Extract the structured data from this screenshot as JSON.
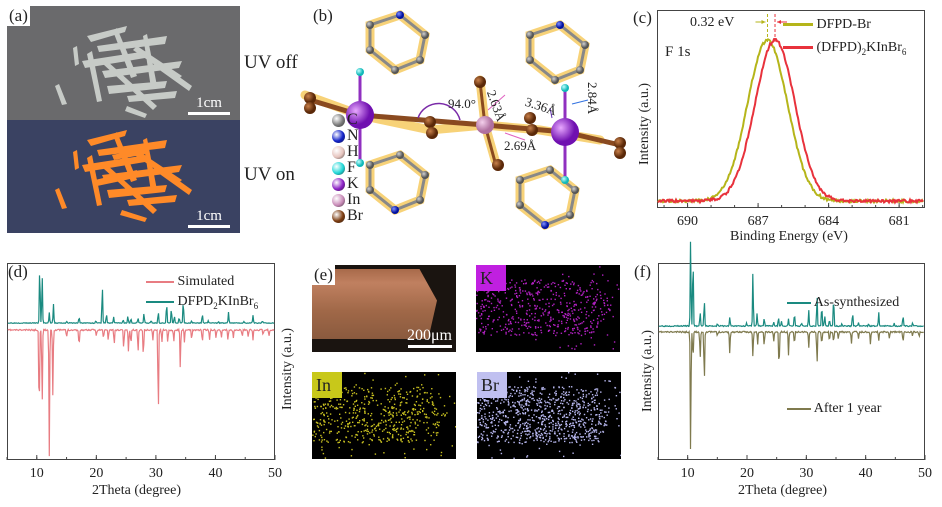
{
  "panels": {
    "a": {
      "label": "(a)",
      "top_caption": "UV off",
      "bottom_caption": "UV on",
      "scalebar_top": "1cm",
      "scalebar_bottom": "1cm"
    },
    "b": {
      "label": "(b)",
      "legend": [
        {
          "symbol": "C",
          "color": "#7a7a7a"
        },
        {
          "symbol": "N",
          "color": "#1020c8"
        },
        {
          "symbol": "H",
          "color": "#e6c4be"
        },
        {
          "symbol": "F",
          "color": "#20d8d8"
        },
        {
          "symbol": "K",
          "color": "#8a1fc4"
        },
        {
          "symbol": "In",
          "color": "#c98bb8"
        },
        {
          "symbol": "Br",
          "color": "#7a3a0e"
        }
      ],
      "annotations": {
        "angle": "94.0°",
        "d1": "2.63Å",
        "d2": "2.69Å",
        "d3": "3.36Å",
        "d4": "2.84Å"
      }
    },
    "e": {
      "label": "(e)",
      "scalebar": "200μm",
      "maps": [
        {
          "tag": "K",
          "tag_color": "#c020e0",
          "dot_color": "#b020c0"
        },
        {
          "tag": "In",
          "tag_color": "#c8c81a",
          "dot_color": "#c8c020"
        },
        {
          "tag": "Br",
          "tag_color": "#c0c0f0",
          "dot_color": "#b8b8f0"
        }
      ],
      "ylabel": "Intensity (a.u.)"
    }
  },
  "chart_data": [
    {
      "panel": "(c)",
      "type": "line",
      "title": "",
      "annotation_label": "F 1s",
      "shift_label": "0.32 eV",
      "xlabel": "Binding Energy (eV)",
      "ylabel": "Intensity (a.u.)",
      "xlim": [
        691.3,
        679.9
      ],
      "xticks": [
        690,
        687,
        684,
        681
      ],
      "x_reversed": true,
      "legend_position": "top-right",
      "series": [
        {
          "name": "DFPD-Br",
          "color": "#b5b51a",
          "center": 686.6,
          "fwhm": 2.0
        },
        {
          "name": "(DFPD)2KInBr6",
          "color": "#e8323c",
          "center": 686.28,
          "fwhm": 2.0
        }
      ],
      "legend_entries": {
        "s1": "DFPD-Br",
        "s2_main": "(DFPD)",
        "s2_sub": "2",
        "s2_tail": "KInBr",
        "s2_sub2": "6"
      }
    },
    {
      "panel": "(d)",
      "type": "line",
      "xlabel": "2Theta (degree)",
      "ylabel": "Intensity (a.u.)",
      "xlim": [
        5,
        50
      ],
      "xticks": [
        10,
        20,
        30,
        40,
        50
      ],
      "legend_position": "top-right",
      "legend_entries": {
        "sim": "Simulated",
        "exp_main": "DFPD",
        "exp_sub": "2",
        "exp_tail": "KInBr",
        "exp_sub2": "6"
      },
      "series": [
        {
          "name": "DFPD2KInBr6",
          "color": "#1a8a80",
          "direction": "up",
          "peaks": [
            [
              10.5,
              1.0
            ],
            [
              10.9,
              0.82
            ],
            [
              12.1,
              0.18
            ],
            [
              12.8,
              0.32
            ],
            [
              15.0,
              0.03
            ],
            [
              17.1,
              0.1
            ],
            [
              19.9,
              0.04
            ],
            [
              21.0,
              0.65
            ],
            [
              21.7,
              0.15
            ],
            [
              22.9,
              0.1
            ],
            [
              24.5,
              0.06
            ],
            [
              25.3,
              0.12
            ],
            [
              25.8,
              0.08
            ],
            [
              27.0,
              0.09
            ],
            [
              28.0,
              0.17
            ],
            [
              29.2,
              0.04
            ],
            [
              30.4,
              0.2
            ],
            [
              31.8,
              0.36
            ],
            [
              32.6,
              0.26
            ],
            [
              33.1,
              0.12
            ],
            [
              33.9,
              0.1
            ],
            [
              34.6,
              0.4
            ],
            [
              36.0,
              0.04
            ],
            [
              37.8,
              0.16
            ],
            [
              38.8,
              0.04
            ],
            [
              40.5,
              0.03
            ],
            [
              42.2,
              0.19
            ],
            [
              44.8,
              0.03
            ],
            [
              46.3,
              0.13
            ],
            [
              47.9,
              0.03
            ]
          ]
        },
        {
          "name": "Simulated",
          "color": "#e87c82",
          "direction": "down",
          "peaks": [
            [
              10.4,
              0.72
            ],
            [
              10.9,
              0.6
            ],
            [
              12.1,
              1.0
            ],
            [
              12.7,
              0.52
            ],
            [
              15.0,
              0.06
            ],
            [
              17.1,
              0.14
            ],
            [
              20.0,
              0.05
            ],
            [
              21.2,
              0.07
            ],
            [
              22.0,
              0.08
            ],
            [
              23.0,
              0.12
            ],
            [
              24.6,
              0.15
            ],
            [
              25.4,
              0.18
            ],
            [
              25.8,
              0.12
            ],
            [
              27.0,
              0.18
            ],
            [
              27.9,
              0.22
            ],
            [
              29.5,
              0.08
            ],
            [
              30.4,
              0.7
            ],
            [
              31.0,
              0.1
            ],
            [
              32.0,
              0.11
            ],
            [
              33.0,
              0.09
            ],
            [
              34.1,
              0.3
            ],
            [
              34.8,
              0.1
            ],
            [
              36.0,
              0.08
            ],
            [
              37.8,
              0.1
            ],
            [
              39.0,
              0.08
            ],
            [
              40.1,
              0.06
            ],
            [
              41.0,
              0.06
            ],
            [
              42.1,
              0.08
            ],
            [
              43.0,
              0.07
            ],
            [
              44.5,
              0.06
            ],
            [
              45.5,
              0.06
            ],
            [
              46.3,
              0.08
            ],
            [
              48.0,
              0.05
            ],
            [
              49.0,
              0.05
            ]
          ]
        }
      ]
    },
    {
      "panel": "(f)",
      "type": "line",
      "xlabel": "2Theta (degree)",
      "ylabel": "Intensity (a.u.)",
      "xlim": [
        5,
        50
      ],
      "xticks": [
        10,
        20,
        30,
        40,
        50
      ],
      "legend_entries": {
        "a": "As-synthesized",
        "b": "After 1 year"
      },
      "series": [
        {
          "name": "As-synthesized",
          "color": "#1a8a80",
          "direction": "up",
          "peaks": [
            [
              10.5,
              1.0
            ],
            [
              10.9,
              0.82
            ],
            [
              12.1,
              0.16
            ],
            [
              12.8,
              0.3
            ],
            [
              15.0,
              0.03
            ],
            [
              17.1,
              0.1
            ],
            [
              19.9,
              0.04
            ],
            [
              21.0,
              0.62
            ],
            [
              21.7,
              0.14
            ],
            [
              22.9,
              0.09
            ],
            [
              24.5,
              0.05
            ],
            [
              25.3,
              0.1
            ],
            [
              25.8,
              0.06
            ],
            [
              27.0,
              0.08
            ],
            [
              28.0,
              0.15
            ],
            [
              29.2,
              0.03
            ],
            [
              30.4,
              0.18
            ],
            [
              31.8,
              0.36
            ],
            [
              32.6,
              0.24
            ],
            [
              33.1,
              0.12
            ],
            [
              33.9,
              0.08
            ],
            [
              34.6,
              0.34
            ],
            [
              36.0,
              0.03
            ],
            [
              37.8,
              0.16
            ],
            [
              38.8,
              0.04
            ],
            [
              40.5,
              0.03
            ],
            [
              42.2,
              0.15
            ],
            [
              44.8,
              0.03
            ],
            [
              46.3,
              0.12
            ],
            [
              47.9,
              0.03
            ]
          ]
        },
        {
          "name": "After 1 year",
          "color": "#7f7a4e",
          "direction": "down",
          "peaks": [
            [
              10.5,
              1.0
            ],
            [
              10.9,
              0.22
            ],
            [
              12.1,
              0.22
            ],
            [
              12.8,
              0.42
            ],
            [
              15.0,
              0.03
            ],
            [
              17.1,
              0.18
            ],
            [
              21.0,
              0.21
            ],
            [
              21.8,
              0.1
            ],
            [
              22.9,
              0.12
            ],
            [
              24.5,
              0.08
            ],
            [
              25.4,
              0.32
            ],
            [
              27.0,
              0.19
            ],
            [
              28.0,
              0.1
            ],
            [
              30.4,
              0.13
            ],
            [
              31.8,
              0.27
            ],
            [
              32.6,
              0.1
            ],
            [
              33.9,
              0.08
            ],
            [
              34.6,
              0.09
            ],
            [
              35.4,
              0.06
            ],
            [
              37.6,
              0.1
            ],
            [
              38.8,
              0.06
            ],
            [
              40.8,
              0.1
            ],
            [
              42.2,
              0.07
            ],
            [
              44.0,
              0.05
            ],
            [
              46.3,
              0.09
            ],
            [
              47.9,
              0.04
            ],
            [
              49.0,
              0.04
            ]
          ]
        }
      ]
    }
  ]
}
